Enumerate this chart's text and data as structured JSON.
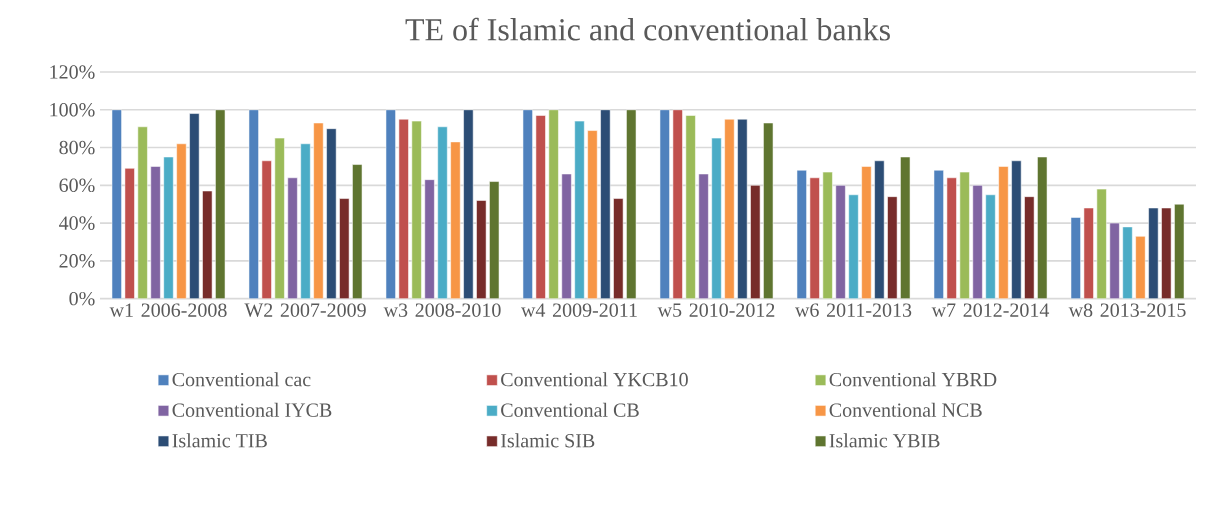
{
  "chart_data": {
    "type": "bar",
    "title": "TE of Islamic and conventional banks",
    "categories": [
      "w1 2006-2008",
      "W2 2007-2009",
      "w3 2008-2010",
      "w4 2009-2011",
      "w5 2010-2012",
      "w6 2011-2013",
      "w7 2012-2014",
      "w8 2013-2015"
    ],
    "series": [
      {
        "name": "Conventional cac",
        "color": "#4f81bd",
        "values": [
          100,
          100,
          100,
          100,
          100,
          68,
          68,
          43
        ]
      },
      {
        "name": "Conventional YKCB10",
        "color": "#c0504d",
        "values": [
          69,
          73,
          95,
          97,
          100,
          64,
          64,
          48
        ]
      },
      {
        "name": "Conventional YBRD",
        "color": "#9bbb59",
        "values": [
          91,
          85,
          94,
          100,
          97,
          67,
          67,
          58
        ]
      },
      {
        "name": "Conventional IYCB",
        "color": "#8064a2",
        "values": [
          70,
          64,
          63,
          66,
          66,
          60,
          60,
          40
        ]
      },
      {
        "name": "Conventional CB",
        "color": "#4bacc6",
        "values": [
          75,
          82,
          91,
          94,
          85,
          55,
          55,
          38
        ]
      },
      {
        "name": "Conventional NCB",
        "color": "#f79646",
        "values": [
          82,
          93,
          83,
          89,
          95,
          70,
          70,
          33
        ]
      },
      {
        "name": "Islamic TIB",
        "color": "#2c4d75",
        "values": [
          98,
          90,
          100,
          100,
          95,
          73,
          73,
          48
        ]
      },
      {
        "name": "Islamic SIB",
        "color": "#772c2a",
        "values": [
          57,
          53,
          52,
          53,
          60,
          54,
          54,
          48
        ]
      },
      {
        "name": "Islamic YBIB",
        "color": "#5f7530",
        "values": [
          100,
          71,
          62,
          100,
          93,
          75,
          75,
          50
        ]
      }
    ],
    "ylim": [
      0,
      120
    ],
    "yticks": [
      {
        "value": 0,
        "label": "0%"
      },
      {
        "value": 20,
        "label": "20%"
      },
      {
        "value": 40,
        "label": "40%"
      },
      {
        "value": 60,
        "label": "60%"
      },
      {
        "value": 80,
        "label": "80%"
      },
      {
        "value": 100,
        "label": "100%"
      },
      {
        "value": 120,
        "label": "120%"
      }
    ],
    "grid": "y",
    "legend": "bottom"
  }
}
